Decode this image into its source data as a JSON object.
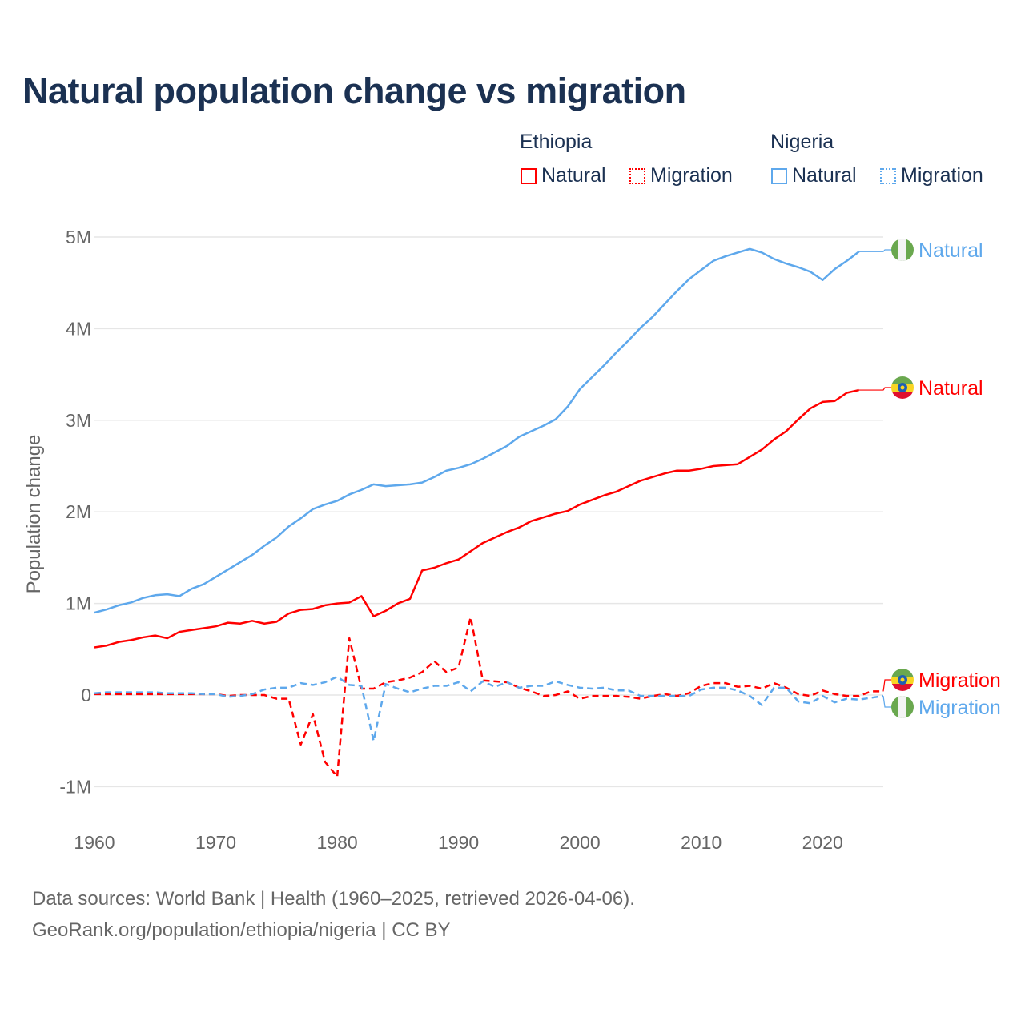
{
  "chart_data": {
    "type": "line",
    "title": "Natural population change vs migration",
    "ylabel": "Population change",
    "xlabel": "",
    "xlim": [
      1960,
      2025
    ],
    "ylim": [
      -1000000,
      5000000
    ],
    "x_ticks": [
      "1960",
      "1970",
      "1980",
      "1990",
      "2000",
      "2010",
      "2020"
    ],
    "y_ticks": [
      {
        "v": -1000000,
        "label": "-1M"
      },
      {
        "v": 0,
        "label": "0"
      },
      {
        "v": 1000000,
        "label": "1M"
      },
      {
        "v": 2000000,
        "label": "2M"
      },
      {
        "v": 3000000,
        "label": "3M"
      },
      {
        "v": 4000000,
        "label": "4M"
      },
      {
        "v": 5000000,
        "label": "5M"
      }
    ],
    "grid": true,
    "legend": {
      "placement": "top-right",
      "groups": [
        {
          "country": "Ethiopia",
          "items": [
            "Natural",
            "Migration"
          ]
        },
        {
          "country": "Nigeria",
          "items": [
            "Natural",
            "Migration"
          ]
        }
      ]
    },
    "series": [
      {
        "name": "Nigeria Natural",
        "country": "Nigeria",
        "kind": "Natural",
        "color": "#5ea8ec",
        "dashed": false,
        "label": "Natural",
        "start_year": 1960,
        "values": [
          0.9,
          0.935,
          0.98,
          1.01,
          1.06,
          1.09,
          1.1,
          1.08,
          1.16,
          1.21,
          1.29,
          1.37,
          1.45,
          1.53,
          1.63,
          1.72,
          1.84,
          1.93,
          2.03,
          2.08,
          2.12,
          2.19,
          2.24,
          2.3,
          2.28,
          2.29,
          2.3,
          2.32,
          2.38,
          2.45,
          2.48,
          2.52,
          2.58,
          2.65,
          2.72,
          2.82,
          2.88,
          2.94,
          3.01,
          3.15,
          3.34,
          3.47,
          3.6,
          3.74,
          3.87,
          4.01,
          4.13,
          4.27,
          4.41,
          4.54,
          4.64,
          4.74,
          4.79,
          4.83,
          4.87,
          4.83,
          4.76,
          4.71,
          4.67,
          4.62,
          4.53,
          4.65,
          4.74,
          4.84
        ]
      },
      {
        "name": "Ethiopia Natural",
        "country": "Ethiopia",
        "kind": "Natural",
        "color": "#ff0000",
        "dashed": false,
        "label": "Natural",
        "start_year": 1960,
        "values": [
          0.52,
          0.54,
          0.58,
          0.6,
          0.63,
          0.65,
          0.62,
          0.69,
          0.71,
          0.73,
          0.75,
          0.79,
          0.78,
          0.81,
          0.78,
          0.8,
          0.89,
          0.93,
          0.94,
          0.98,
          1.0,
          1.01,
          1.08,
          0.86,
          0.92,
          1.0,
          1.05,
          1.36,
          1.39,
          1.44,
          1.48,
          1.57,
          1.66,
          1.72,
          1.78,
          1.83,
          1.9,
          1.94,
          1.98,
          2.01,
          2.08,
          2.13,
          2.18,
          2.22,
          2.28,
          2.34,
          2.38,
          2.42,
          2.45,
          2.45,
          2.47,
          2.5,
          2.51,
          2.52,
          2.6,
          2.68,
          2.79,
          2.88,
          3.01,
          3.13,
          3.2,
          3.21,
          3.3,
          3.33
        ]
      },
      {
        "name": "Ethiopia Migration",
        "country": "Ethiopia",
        "kind": "Migration",
        "color": "#ff0000",
        "dashed": true,
        "label": "Migration",
        "start_year": 1960,
        "values": [
          0.01,
          0.01,
          0.01,
          0.01,
          0.01,
          0.01,
          0.01,
          0.01,
          0.01,
          0.01,
          0.01,
          -0.01,
          0.0,
          0.0,
          0.0,
          -0.04,
          -0.04,
          -0.54,
          -0.21,
          -0.73,
          -0.89,
          0.62,
          0.07,
          0.07,
          0.14,
          0.16,
          0.19,
          0.25,
          0.37,
          0.25,
          0.3,
          0.85,
          0.16,
          0.15,
          0.14,
          0.08,
          0.04,
          -0.01,
          0.0,
          0.04,
          -0.04,
          -0.01,
          -0.01,
          -0.01,
          -0.02,
          -0.04,
          -0.01,
          0.01,
          -0.01,
          0.02,
          0.1,
          0.13,
          0.13,
          0.09,
          0.1,
          0.07,
          0.13,
          0.08,
          0.01,
          -0.01,
          0.05,
          0.01,
          -0.01,
          -0.01,
          0.04,
          0.04
        ]
      },
      {
        "name": "Nigeria Migration",
        "country": "Nigeria",
        "kind": "Migration",
        "color": "#5ea8ec",
        "dashed": true,
        "label": "Migration",
        "start_year": 1960,
        "values": [
          0.02,
          0.03,
          0.03,
          0.03,
          0.03,
          0.03,
          0.02,
          0.02,
          0.02,
          0.01,
          0.01,
          -0.02,
          -0.01,
          0.01,
          0.06,
          0.08,
          0.08,
          0.13,
          0.11,
          0.14,
          0.2,
          0.11,
          0.1,
          -0.5,
          0.12,
          0.07,
          0.03,
          0.07,
          0.1,
          0.1,
          0.14,
          0.04,
          0.15,
          0.09,
          0.14,
          0.08,
          0.1,
          0.1,
          0.15,
          0.11,
          0.08,
          0.07,
          0.08,
          0.05,
          0.05,
          -0.01,
          -0.01,
          -0.01,
          -0.01,
          -0.01,
          0.06,
          0.08,
          0.08,
          0.05,
          -0.01,
          -0.11,
          0.08,
          0.08,
          -0.07,
          -0.09,
          -0.01,
          -0.08,
          -0.04,
          -0.05,
          -0.03,
          -0.01
        ]
      }
    ],
    "values_unit": "millions"
  },
  "legend_labels": {
    "ethiopia": "Ethiopia",
    "nigeria": "Nigeria",
    "natural": "Natural",
    "migration": "Migration"
  },
  "footer": {
    "line1": "Data sources: World Bank | Health (1960–2025, retrieved 2026-04-06).",
    "line2": "GeoRank.org/population/ethiopia/nigeria | CC BY"
  }
}
